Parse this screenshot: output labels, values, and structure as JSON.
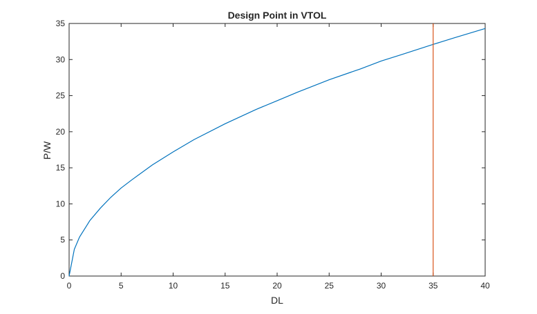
{
  "chart_data": {
    "type": "line",
    "title": "Design Point in VTOL",
    "xlabel": "DL",
    "ylabel": "P/W",
    "xlim": [
      0,
      40
    ],
    "ylim": [
      0,
      35
    ],
    "x_ticks": [
      0,
      5,
      10,
      15,
      20,
      25,
      30,
      35,
      40
    ],
    "y_ticks": [
      0,
      5,
      10,
      15,
      20,
      25,
      30,
      35
    ],
    "grid": false,
    "legend": "none",
    "series": [
      {
        "color": "#0072BD",
        "x": [
          0,
          0.5,
          1,
          2,
          3,
          4,
          5,
          6,
          8,
          10,
          12,
          15,
          18,
          20,
          22,
          25,
          28,
          30,
          32,
          35,
          37,
          40
        ],
        "y": [
          0,
          3.7,
          5.4,
          7.7,
          9.4,
          10.9,
          12.2,
          13.3,
          15.4,
          17.2,
          18.9,
          21.1,
          23.1,
          24.3,
          25.5,
          27.2,
          28.7,
          29.8,
          30.7,
          32.1,
          33.0,
          34.3
        ]
      },
      {
        "color": "#D95319",
        "x": [
          35,
          35
        ],
        "y": [
          0,
          35
        ]
      }
    ]
  }
}
